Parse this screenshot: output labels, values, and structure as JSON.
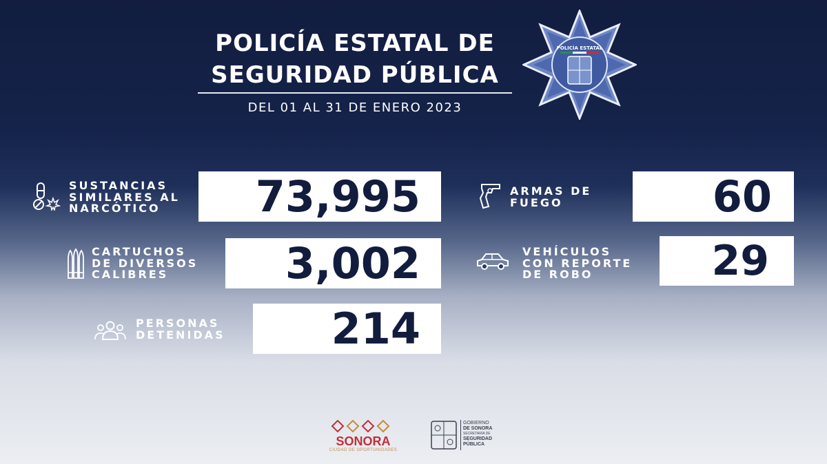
{
  "header": {
    "title_line1": "POLICÍA ESTATAL DE",
    "title_line2": "SEGURIDAD PÚBLICA",
    "date_range": "DEL 01 AL 31 DE ENERO 2023"
  },
  "badge": {
    "text": "POLICÍA ESTATAL",
    "icon": "police-star-badge"
  },
  "stats": [
    {
      "label": "SUSTANCIAS\nSIMILARES AL\nNARCÓTICO",
      "value": "73,995",
      "icon": "narcotics-icon"
    },
    {
      "label": "ARMAS DE\nFUEGO",
      "value": "60",
      "icon": "revolver-icon"
    },
    {
      "label": "CARTUCHOS\nDE DIVERSOS\nCALIBRES",
      "value": "3,002",
      "icon": "bullets-icon"
    },
    {
      "label": "VEHÍCULOS\nCON REPORTE\nDE ROBO",
      "value": "29",
      "icon": "car-icon"
    },
    {
      "label": "PERSONAS\nDETENIDAS",
      "value": "214",
      "icon": "people-icon"
    }
  ],
  "footer": {
    "sonora_logo": {
      "text": "SONORA",
      "tagline": "CIUDAD DE OPORTUNIDADES"
    },
    "gobierno_logo": {
      "line1": "GOBIERNO",
      "line2": "DE SONORA",
      "line3": "SECRETARÍA DE",
      "line4": "SEGURIDAD",
      "line5": "PÚBLICA"
    }
  },
  "colors": {
    "navy": "#121c3d",
    "white": "#ffffff",
    "sonora_red": "#c0313a",
    "sonora_gold": "#c68a3c"
  }
}
